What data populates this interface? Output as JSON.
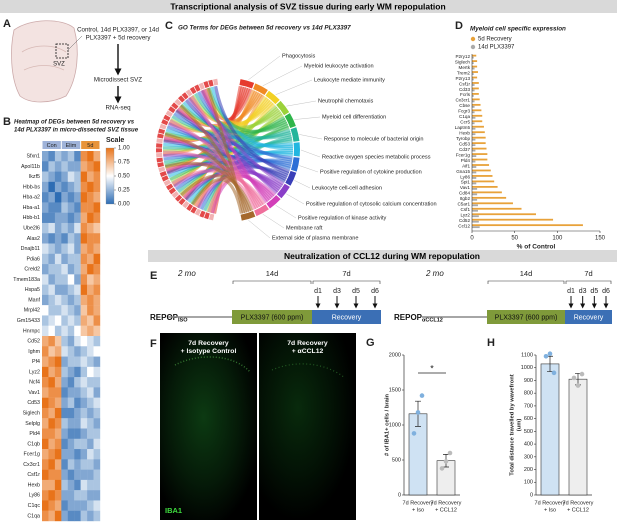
{
  "banners": [
    "Transcriptional analysis of SVZ tissue during early WM repopulation",
    "Neutralization of CCL12 during WM repopulation"
  ],
  "panel_labels": [
    "A",
    "B",
    "C",
    "D",
    "E",
    "F",
    "G",
    "H"
  ],
  "A": {
    "region": "SVZ",
    "steps": [
      [
        "Control, 14d PLX3397, or 14d",
        "PLX3397 + 5d recovery"
      ],
      [
        "Microdissect SVZ"
      ],
      [
        "RNA-seq"
      ]
    ]
  },
  "B": {
    "title": [
      "Heatmap of DEGs between 5d recovery vs",
      "14d PLX3397 in micro-dissected SVZ tissue"
    ],
    "groups": [
      {
        "name": "Con",
        "color": "#9fb3d9"
      },
      {
        "name": "Elim",
        "color": "#9fb3d9"
      },
      {
        "name": "5d",
        "color": "#e8943a"
      }
    ],
    "genes": [
      "Sfxn1",
      "Apol11b",
      "Ikzf5",
      "Hbb-bs",
      "Hba-a2",
      "Hba-a1",
      "Hbb-b1",
      "Ube2l6",
      "Alas2",
      "Dnajb11",
      "Pdia6",
      "Creld2",
      "Tmem183a",
      "Hspa5",
      "Manf",
      "Mrpl42",
      "Gm15433",
      "Hnrnpc",
      "Cd52",
      "Ighm",
      "Pf4",
      "Lyz2",
      "Ncf4",
      "Vav1",
      "Cd53",
      "Siglech",
      "Selplg",
      "Pld4",
      "C1qb",
      "Fcer1g",
      "Cx3cr1",
      "Csf1r",
      "Hexb",
      "Ly86",
      "C1qc",
      "C1qa"
    ],
    "values": [
      [
        0.2,
        0.1,
        0.3,
        0.2,
        0.3,
        0.1,
        0.9,
        1.0,
        0.8
      ],
      [
        0.1,
        0.3,
        0.2,
        0.3,
        0.2,
        0.2,
        0.8,
        0.9,
        1.0
      ],
      [
        0.3,
        0.2,
        0.1,
        0.2,
        0.4,
        0.3,
        1.0,
        0.8,
        0.9
      ],
      [
        0.2,
        0.0,
        0.2,
        0.1,
        0.2,
        0.3,
        0.9,
        1.0,
        0.9
      ],
      [
        0.1,
        0.2,
        0.0,
        0.2,
        0.1,
        0.2,
        1.0,
        0.9,
        0.8
      ],
      [
        0.2,
        0.1,
        0.1,
        0.3,
        0.2,
        0.1,
        0.9,
        0.9,
        1.0
      ],
      [
        0.1,
        0.1,
        0.2,
        0.2,
        0.1,
        0.2,
        0.8,
        1.0,
        0.9
      ],
      [
        0.3,
        0.4,
        0.2,
        0.3,
        0.2,
        0.4,
        0.9,
        0.8,
        0.7
      ],
      [
        0.2,
        0.1,
        0.2,
        0.1,
        0.3,
        0.2,
        1.0,
        0.9,
        0.9
      ],
      [
        0.4,
        0.3,
        0.2,
        0.3,
        0.4,
        0.2,
        0.8,
        0.9,
        0.8
      ],
      [
        0.3,
        0.2,
        0.4,
        0.2,
        0.3,
        0.3,
        0.9,
        0.8,
        1.0
      ],
      [
        0.2,
        0.3,
        0.3,
        0.4,
        0.2,
        0.3,
        0.8,
        1.0,
        0.9
      ],
      [
        0.4,
        0.2,
        0.3,
        0.3,
        0.5,
        0.2,
        0.9,
        0.7,
        0.8
      ],
      [
        0.3,
        0.4,
        0.2,
        0.2,
        0.3,
        0.4,
        1.0,
        0.8,
        0.9
      ],
      [
        0.2,
        0.3,
        0.4,
        0.3,
        0.2,
        0.3,
        0.8,
        0.9,
        0.8
      ],
      [
        0.5,
        0.3,
        0.3,
        0.4,
        0.3,
        0.2,
        0.7,
        0.9,
        0.8
      ],
      [
        0.3,
        0.4,
        0.5,
        0.3,
        0.4,
        0.3,
        0.8,
        0.7,
        0.9
      ],
      [
        0.4,
        0.5,
        0.3,
        0.4,
        0.3,
        0.5,
        0.7,
        0.8,
        0.7
      ],
      [
        0.8,
        0.9,
        0.7,
        0.3,
        0.2,
        0.4,
        0.5,
        0.4,
        0.3
      ],
      [
        0.9,
        0.7,
        0.8,
        0.4,
        0.3,
        0.2,
        0.3,
        0.4,
        0.5
      ],
      [
        0.8,
        0.9,
        1.0,
        0.2,
        0.3,
        0.3,
        0.4,
        0.3,
        0.2
      ],
      [
        1.0,
        0.8,
        0.9,
        0.3,
        0.2,
        0.1,
        0.3,
        0.5,
        0.4
      ],
      [
        0.9,
        1.0,
        0.8,
        0.2,
        0.1,
        0.3,
        0.4,
        0.3,
        0.3
      ],
      [
        0.8,
        0.9,
        0.9,
        0.1,
        0.2,
        0.2,
        0.3,
        0.4,
        0.2
      ],
      [
        1.0,
        0.9,
        0.8,
        0.2,
        0.3,
        0.1,
        0.2,
        0.3,
        0.4
      ],
      [
        0.9,
        0.8,
        1.0,
        0.1,
        0.1,
        0.2,
        0.3,
        0.2,
        0.3
      ],
      [
        0.8,
        1.0,
        0.9,
        0.3,
        0.2,
        0.2,
        0.4,
        0.3,
        0.2
      ],
      [
        0.9,
        0.9,
        0.8,
        0.2,
        0.1,
        0.1,
        0.2,
        0.3,
        0.3
      ],
      [
        1.0,
        0.8,
        0.9,
        0.1,
        0.2,
        0.3,
        0.3,
        0.2,
        0.4
      ],
      [
        0.8,
        0.9,
        1.0,
        0.2,
        0.2,
        0.1,
        0.2,
        0.4,
        0.3
      ],
      [
        0.9,
        1.0,
        0.8,
        0.1,
        0.3,
        0.2,
        0.3,
        0.3,
        0.2
      ],
      [
        1.0,
        0.9,
        0.9,
        0.2,
        0.1,
        0.2,
        0.2,
        0.2,
        0.3
      ],
      [
        0.8,
        0.8,
        1.0,
        0.3,
        0.2,
        0.1,
        0.4,
        0.3,
        0.3
      ],
      [
        0.9,
        1.0,
        0.9,
        0.2,
        0.2,
        0.3,
        0.3,
        0.2,
        0.2
      ],
      [
        1.0,
        0.9,
        0.8,
        0.1,
        0.2,
        0.2,
        0.2,
        0.3,
        0.4
      ],
      [
        0.9,
        0.8,
        1.0,
        0.2,
        0.1,
        0.1,
        0.3,
        0.2,
        0.3
      ]
    ],
    "scale": {
      "title": "Scale",
      "colors": [
        "#2e6db4",
        "#ffffff",
        "#e8731a"
      ],
      "ticks": [
        {
          "value": 1,
          "label": "1.00"
        },
        {
          "value": 0.75,
          "label": "0.75"
        },
        {
          "value": 0.5,
          "label": "0.50"
        },
        {
          "value": 0.25,
          "label": "0.25"
        },
        {
          "value": 0,
          "label": "0.00"
        }
      ]
    }
  },
  "C": {
    "title": "GO Terms for DEGs between 5d recovery vs 14d PLX3397",
    "terms": [
      {
        "name": "Phagocytosis",
        "color": "#e63b2e"
      },
      {
        "name": "Myeloid leukocyte activation",
        "color": "#f08a24"
      },
      {
        "name": "Leukocyte mediate immunity",
        "color": "#f2d024"
      },
      {
        "name": "Neutrophil chemotaxis",
        "color": "#9bd13a"
      },
      {
        "name": "Myeloid cell differentiation",
        "color": "#2fb54a"
      },
      {
        "name": "Response to molecule of bacterial origin",
        "color": "#23b59b"
      },
      {
        "name": "Reactive oxygen species metabolic process",
        "color": "#22b6e0"
      },
      {
        "name": "Positive regulation of cytokine production",
        "color": "#2e6fd6"
      },
      {
        "name": "Leukocyte cell-cell adhesion",
        "color": "#3a3fb8"
      },
      {
        "name": "Positive regulation of cytosolic calcium concentration",
        "color": "#8a3ec8"
      },
      {
        "name": "Positive regulation of kinase activity",
        "color": "#d23fb8"
      },
      {
        "name": "Membrane raft",
        "color": "#ef6f9c"
      },
      {
        "name": "External side of plasma membrane",
        "color": "#a5692d"
      }
    ]
  },
  "D": {
    "type": "bar",
    "title": "Myeloid cell specific expression",
    "categories": [
      "P2ry12",
      "Siglech",
      "Mertk",
      "Trem2",
      "P2ry13",
      "Csf1r",
      "Cd33",
      "Fcrls",
      "Cx3cr1",
      "Cbse",
      "Fcgr3",
      "C1qa",
      "Ccr5",
      "Laptm5",
      "Hexb",
      "Tyrobp",
      "Cd53",
      "Cd37",
      "Fcer1g",
      "Pld4",
      "Aif1",
      "Gna15",
      "Ly86",
      "Spi1",
      "Vav1",
      "Cd84",
      "Itgb2",
      "C5ar1",
      "Csf1",
      "Lyz2",
      "Cd52",
      "Ccl12"
    ],
    "series": [
      {
        "name": "5d Recovery",
        "color": "#e8a23a",
        "values": [
          5,
          6,
          6,
          7,
          6,
          8,
          8,
          8,
          9,
          10,
          11,
          12,
          12,
          14,
          15,
          16,
          16,
          17,
          18,
          18,
          20,
          22,
          24,
          26,
          30,
          35,
          40,
          48,
          58,
          75,
          95,
          130
        ]
      },
      {
        "name": "14d PLX3397",
        "color": "#aaaaaa",
        "values": [
          2,
          2,
          3,
          2,
          2,
          3,
          3,
          2,
          3,
          3,
          3,
          4,
          3,
          4,
          4,
          4,
          4,
          4,
          5,
          4,
          5,
          5,
          5,
          5,
          6,
          6,
          6,
          7,
          7,
          8,
          8,
          9
        ]
      }
    ],
    "xlim": [
      0,
      150
    ],
    "xticks": [
      0,
      50,
      100,
      150
    ],
    "xlabel": "% of Control"
  },
  "E": {
    "groups": [
      {
        "main": "REPOP",
        "sub": "ISO"
      },
      {
        "main": "REPOP",
        "sub": "αCCL12"
      }
    ],
    "age": "2 mo",
    "durations": [
      "14d",
      "7d"
    ],
    "days": [
      "d1",
      "d3",
      "d5",
      "d6"
    ],
    "phases": [
      "PLX3397 (600 ppm)",
      "Recovery"
    ],
    "phase_colors": [
      "#7f9a3a",
      "#3b6fb5"
    ]
  },
  "F": {
    "images": [
      [
        "7d Recovery",
        "+ Isotype Control"
      ],
      [
        "7d Recovery",
        "+ αCCL12"
      ]
    ],
    "stain": "IBA1"
  },
  "G": {
    "type": "bar",
    "ylabel": [
      "# of IBA1+ cells / brain"
    ],
    "categories": [
      [
        "7d Recovery",
        "+ Iso"
      ],
      [
        "7d Recovery",
        "+ CCL12"
      ]
    ],
    "values": [
      1160,
      490
    ],
    "errors": [
      180,
      90
    ],
    "points": [
      [
        880,
        1180,
        1420
      ],
      [
        380,
        480,
        600
      ]
    ],
    "colors": [
      "#cfe2f3",
      "#eeeeee"
    ],
    "ylim": [
      0,
      2000
    ],
    "yticks": [
      0,
      500,
      1000,
      1500,
      2000
    ],
    "significance": "*"
  },
  "H": {
    "type": "bar",
    "ylabel": [
      "Total distance travelled by wavefront",
      "(um)"
    ],
    "categories": [
      [
        "7d Recovery",
        "+ Iso"
      ],
      [
        "7d Recovery",
        "+ CCL12"
      ]
    ],
    "values": [
      1030,
      910
    ],
    "errors": [
      60,
      45
    ],
    "points": [
      [
        1090,
        1110,
        960
      ],
      [
        920,
        860,
        950
      ]
    ],
    "colors": [
      "#cfe2f3",
      "#eeeeee"
    ],
    "ylim": [
      0,
      1100
    ],
    "yticks": [
      0,
      100,
      200,
      300,
      400,
      500,
      600,
      700,
      800,
      900,
      1000,
      1100
    ]
  }
}
